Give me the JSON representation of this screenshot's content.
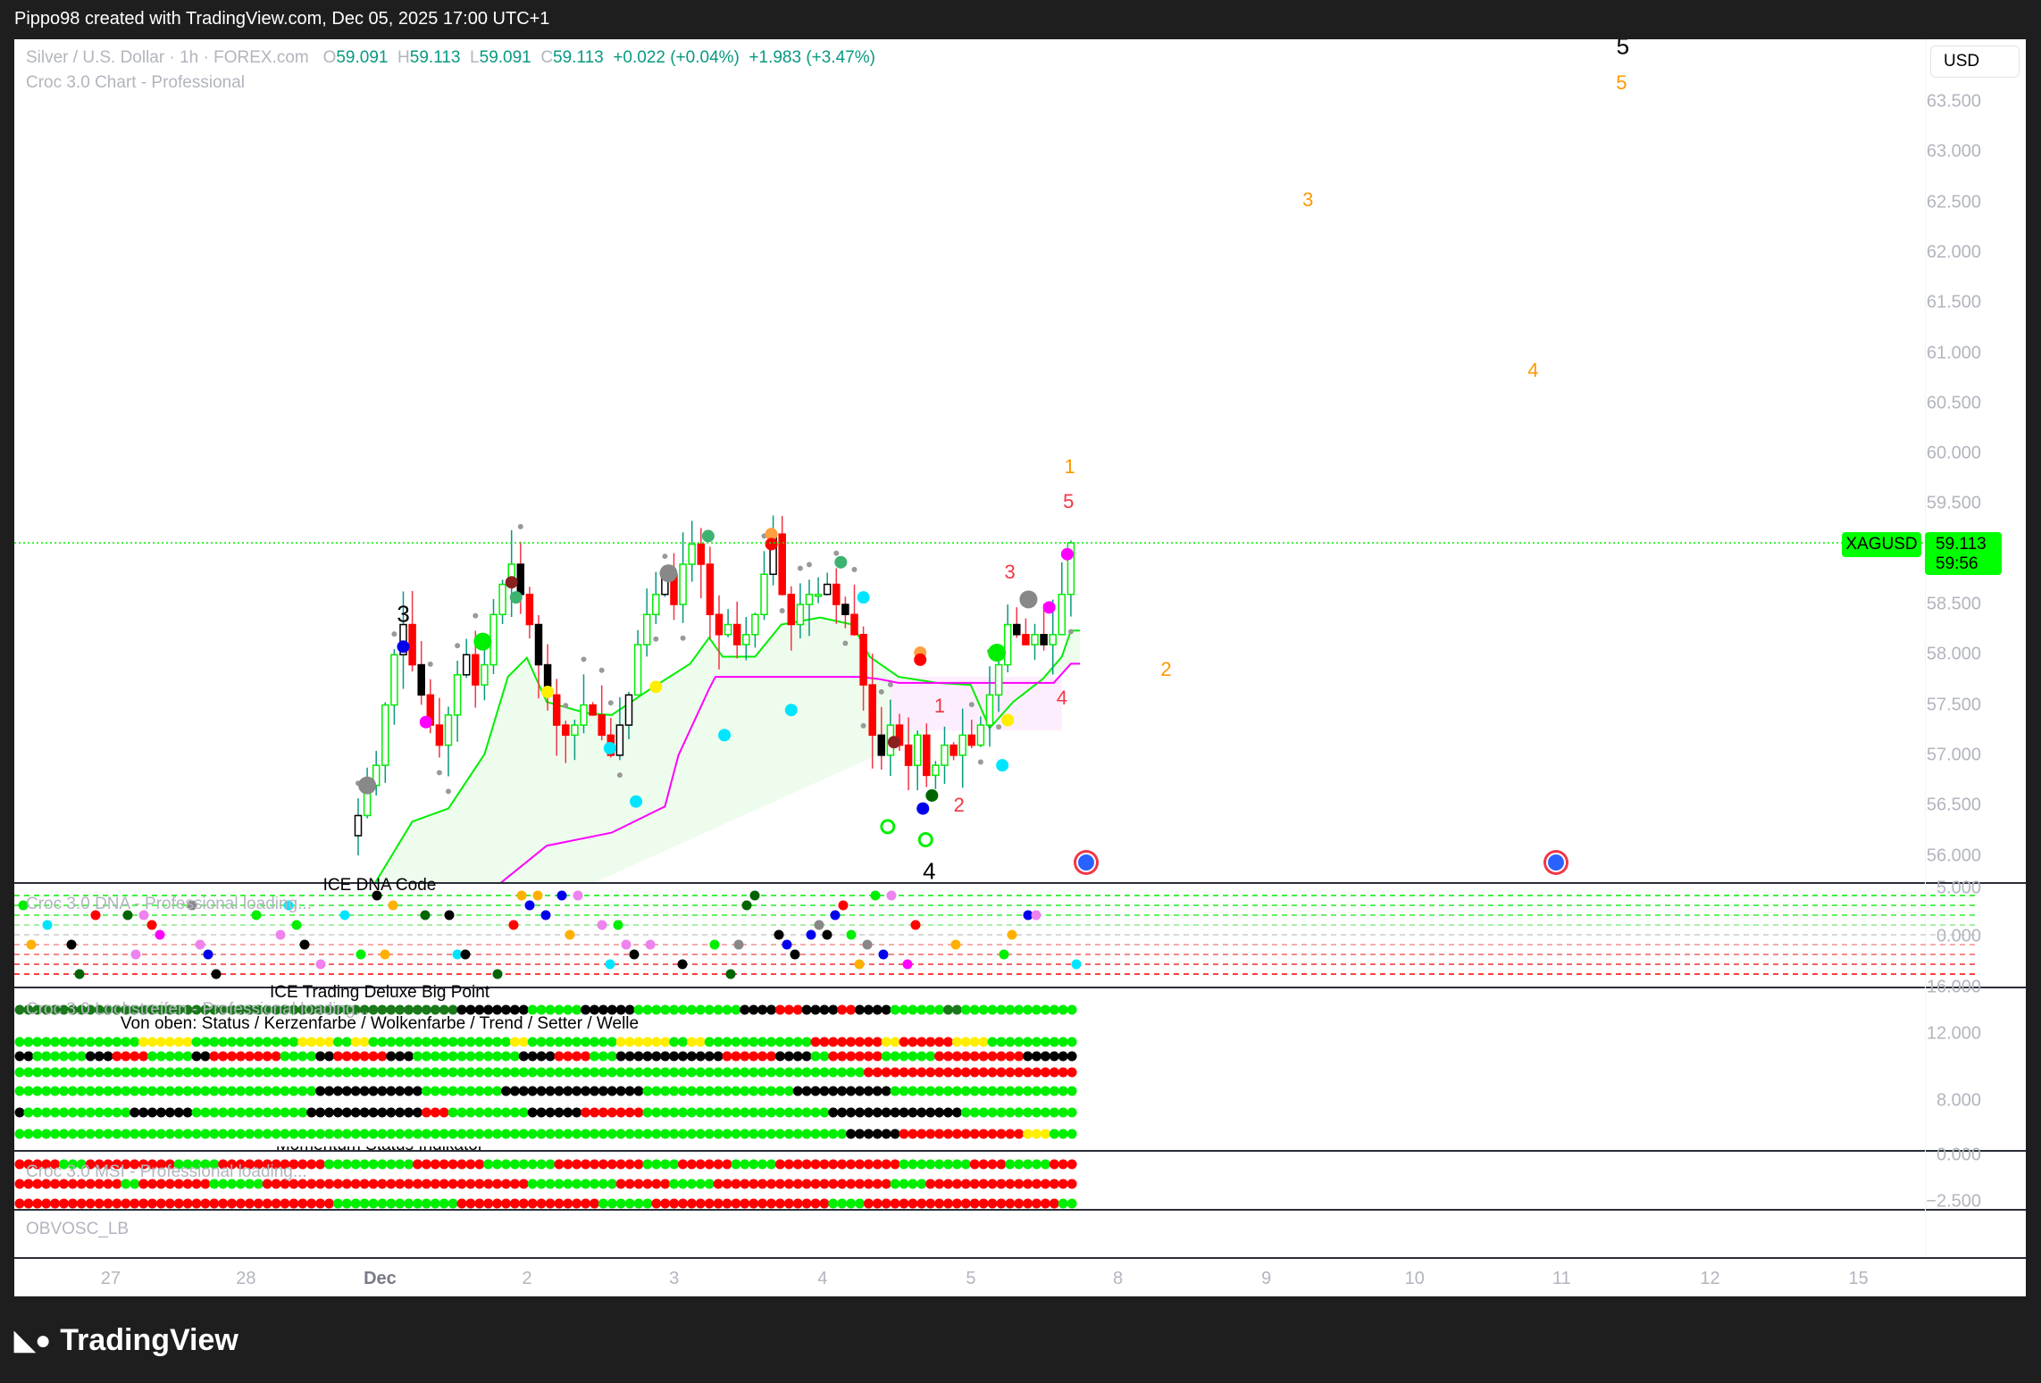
{
  "topbar": {
    "text": "Pippo98 created with TradingView.com, Dec 05, 2025 17:00 UTC+1"
  },
  "legend": {
    "symbol": "Silver / U.S. Dollar · 1h · FOREX.com",
    "o_label": "O",
    "o": "59.091",
    "h_label": "H",
    "h": "59.113",
    "l_label": "L",
    "l": "59.091",
    "c_label": "C",
    "c": "59.113",
    "change": "+0.022 (+0.04%)",
    "change2": "+1.983 (+3.47%)",
    "indicator": "Croc 3.0 Chart - Professional"
  },
  "currency": "USD",
  "price_tag": {
    "symbol": "XAGUSD",
    "price": "59.113",
    "countdown": "59:56",
    "color": "#00ff00"
  },
  "price_axis": [
    "63.500",
    "63.000",
    "62.500",
    "62.000",
    "61.500",
    "61.000",
    "60.500",
    "60.000",
    "59.500",
    "58.500",
    "58.000",
    "57.500",
    "57.000",
    "56.500",
    "56.000"
  ],
  "dna_axis": [
    "5.000",
    "0.000"
  ],
  "loch_axis": [
    "16.000",
    "12.000",
    "8.000"
  ],
  "msi_axis": [
    "0.000",
    "−2.500"
  ],
  "time_axis": [
    "27",
    "28",
    "Dec",
    "2",
    "3",
    "4",
    "5",
    "8",
    "9",
    "10",
    "11",
    "12",
    "15"
  ],
  "waves": [
    {
      "t": "5",
      "color": "#000000"
    },
    {
      "t": "5",
      "color": "#ff9800"
    },
    {
      "t": "3",
      "color": "#ff9800"
    },
    {
      "t": "4",
      "color": "#ff9800"
    },
    {
      "t": "1",
      "color": "#ff9800"
    },
    {
      "t": "5",
      "color": "#f23645"
    },
    {
      "t": "3",
      "color": "#f23645"
    },
    {
      "t": "2",
      "color": "#ff9800"
    },
    {
      "t": "4",
      "color": "#f23645"
    },
    {
      "t": "1",
      "color": "#f23645"
    },
    {
      "t": "2",
      "color": "#f23645"
    },
    {
      "t": "3",
      "color": "#000000"
    },
    {
      "t": "4",
      "color": "#000000"
    }
  ],
  "panes": {
    "dna_title": "ICE DNA Code",
    "dna_loading": "Croc 3.0 DNA - Professional loading...",
    "loch_title": "ICE Trading Deluxe Big Point",
    "loch_loading": "Croc 3.0 Lochstreifen - Professional loading...",
    "loch_subtitle": "Von oben: Status / Kerzenfarbe / Wolkenfarbe / Trend / Setter / Welle",
    "msi_title": "Momentum Status Indikator",
    "msi_loading": "Croc 3.0 MSI - Professional loading...",
    "obv": "OBVOSC_LB"
  },
  "logo": "TradingView",
  "chart_data": {
    "type": "candlestick",
    "closes": [
      56.4,
      56.7,
      56.9,
      57.5,
      58.0,
      58.3,
      57.9,
      57.6,
      57.3,
      57.1,
      57.4,
      57.8,
      58.0,
      57.7,
      57.9,
      58.4,
      58.7,
      58.9,
      58.6,
      58.3,
      57.9,
      57.6,
      57.3,
      57.2,
      57.3,
      57.5,
      57.4,
      57.2,
      57.0,
      57.3,
      57.6,
      58.1,
      58.4,
      58.6,
      58.8,
      58.5,
      58.9,
      59.1,
      58.9,
      58.4,
      58.2,
      58.3,
      58.1,
      58.2,
      58.4,
      58.8,
      59.2,
      58.6,
      58.3,
      58.5,
      58.6,
      58.6,
      58.7,
      58.5,
      58.4,
      58.2,
      57.7,
      57.2,
      57.0,
      57.3,
      57.1,
      56.9,
      57.2,
      56.8,
      56.9,
      57.1,
      57.0,
      57.2,
      57.1,
      57.3,
      57.6,
      57.9,
      58.3,
      58.2,
      58.1,
      58.2,
      58.1,
      58.2,
      58.6,
      59.113
    ],
    "last_price": 59.113,
    "green_line": [
      [
        1,
        55.6
      ],
      [
        6,
        56.34
      ],
      [
        10,
        56.47
      ],
      [
        14,
        57.01
      ],
      [
        16.6,
        57.78
      ],
      [
        18.7,
        57.97
      ],
      [
        20.9,
        57.53
      ],
      [
        25.3,
        57.42
      ],
      [
        28.1,
        57.4
      ],
      [
        32.4,
        57.66
      ],
      [
        36.8,
        57.91
      ],
      [
        38.9,
        58.17
      ],
      [
        40.4,
        57.98
      ],
      [
        44,
        57.98
      ],
      [
        46.9,
        58.3
      ],
      [
        51.2,
        58.37
      ],
      [
        54.8,
        58.3
      ],
      [
        56.7,
        57.98
      ],
      [
        59.9,
        57.78
      ],
      [
        64.2,
        57.72
      ],
      [
        67.9,
        57.7
      ],
      [
        70,
        57.27
      ],
      [
        72.6,
        57.53
      ],
      [
        75.9,
        57.76
      ],
      [
        78,
        57.98
      ],
      [
        79,
        58.24
      ],
      [
        80,
        58.24
      ]
    ],
    "magenta_line": [
      [
        14,
        55.6
      ],
      [
        20.9,
        56.1
      ],
      [
        28.1,
        56.23
      ],
      [
        34,
        56.49
      ],
      [
        35.5,
        57.0
      ],
      [
        38.9,
        57.66
      ],
      [
        39.6,
        57.78
      ],
      [
        46.9,
        57.78
      ],
      [
        55.5,
        57.78
      ],
      [
        57.6,
        57.76
      ],
      [
        59.9,
        57.72
      ],
      [
        77.1,
        57.72
      ],
      [
        79,
        57.91
      ],
      [
        80,
        57.91
      ]
    ],
    "markers": [
      {
        "i": 5,
        "p": 58.08,
        "c": "#0000ee"
      },
      {
        "i": 7.5,
        "p": 57.33,
        "c": "#ff00ff"
      },
      {
        "i": 1,
        "p": 56.7,
        "c": "#888888"
      },
      {
        "i": 13.8,
        "p": 58.13,
        "c": "#00ee00"
      },
      {
        "i": 21,
        "p": 57.63,
        "c": "#ffee00"
      },
      {
        "i": 17,
        "p": 58.72,
        "c": "#8b2020"
      },
      {
        "i": 17.5,
        "p": 58.57,
        "c": "#3cb371"
      },
      {
        "i": 34.4,
        "p": 58.81,
        "c": "#888888"
      },
      {
        "i": 38.8,
        "p": 59.18,
        "c": "#3cb371"
      },
      {
        "i": 45.8,
        "p": 59.2,
        "c": "#ff9f40"
      },
      {
        "i": 45.8,
        "p": 59.1,
        "c": "#ff0000"
      },
      {
        "i": 53.5,
        "p": 58.92,
        "c": "#3cb371"
      },
      {
        "i": 56,
        "p": 58.57,
        "c": "#00e5ff"
      },
      {
        "i": 33,
        "p": 57.68,
        "c": "#ffee00"
      },
      {
        "i": 40.6,
        "p": 57.2,
        "c": "#00e5ff"
      },
      {
        "i": 48,
        "p": 57.45,
        "c": "#00e5ff"
      },
      {
        "i": 27.9,
        "p": 57.07,
        "c": "#00e5ff"
      },
      {
        "i": 30.8,
        "p": 56.54,
        "c": "#00e5ff"
      },
      {
        "i": 62.3,
        "p": 58.02,
        "c": "#ff9f40"
      },
      {
        "i": 62.3,
        "p": 57.95,
        "c": "#ff0000"
      },
      {
        "i": 59.4,
        "p": 57.13,
        "c": "#8b2020"
      },
      {
        "i": 63.6,
        "p": 56.6,
        "c": "#006400"
      },
      {
        "i": 62.6,
        "p": 56.47,
        "c": "#0000ee"
      },
      {
        "i": 70.8,
        "p": 58.02,
        "c": "#00ee00"
      },
      {
        "i": 74.3,
        "p": 58.55,
        "c": "#888888"
      },
      {
        "i": 76.6,
        "p": 58.47,
        "c": "#ff00ff"
      },
      {
        "i": 78.6,
        "p": 59.0,
        "c": "#ff00ff"
      },
      {
        "i": 72,
        "p": 57.35,
        "c": "#ffee00"
      },
      {
        "i": 71.4,
        "p": 56.9,
        "c": "#00e5ff"
      }
    ],
    "rings": [
      {
        "i": 58.7,
        "p": 56.29
      },
      {
        "i": 62.9,
        "p": 56.16
      }
    ]
  },
  "dot_colors": {
    "G": "#00ee00",
    "R": "#ff0000",
    "K": "#000000",
    "Y": "#ffee00",
    "D": "#1a7a1a"
  },
  "loch_rows": [
    "D50K8G6K6G12K4R3K4R2K4G6D2G13",
    "G14Y6G12Y4G2Y2G16Y2G10Y6G2Y2G12R8Y2R6Y4G10",
    "K2G6K3R4G5K2R8G4K2R6K3G12K4R4G3K12R6K4G2R6G6R10K10R4G6",
    "G96R24",
    "G34K12G9K16G17K11G27K22G8K13R16K4G30",
    "K1G12K7G13K13R3G9K6R7G21K15G24K24G10K2R20K3G25K6",
    "G94K6R14Y3G3"
  ],
  "msi_rows": [
    "R5G3R10G5R12G10R8G8R10G4R6G5R14G8R4G5R12G4R10",
    "R12G2R8G6R30G10R6G5R20G4R22G5R16",
    "R36G14R16G6R20G4R22G5R10"
  ],
  "dna_colors": [
    "#0000ee",
    "#ff00ff",
    "#ffb000",
    "#ff0000",
    "#00e5ff",
    "#ee82ee",
    "#000000",
    "#006400",
    "#888888",
    "#00ee00"
  ]
}
